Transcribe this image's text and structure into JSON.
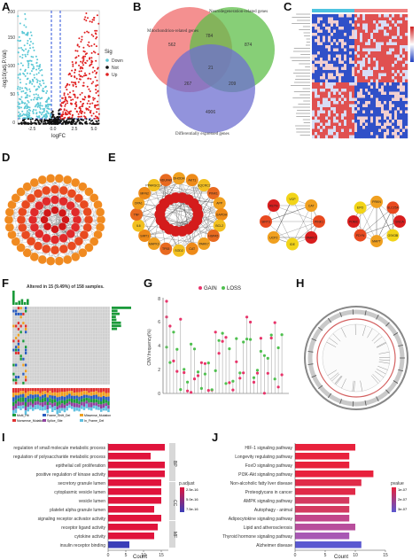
{
  "panel_labels": {
    "A": "A",
    "B": "B",
    "C": "C",
    "D": "D",
    "E": "E",
    "F": "F",
    "G": "G",
    "H": "H",
    "I": "I",
    "J": "J"
  },
  "panelA": {
    "ylabel": "-log10(adj.P.Val)",
    "xlabel": "logFC",
    "yticks": [
      "0",
      "50",
      "100",
      "150",
      "200"
    ],
    "xticks": [
      "-2.5",
      "0.0",
      "2.5",
      "5.0"
    ],
    "legend_title": "Sig",
    "legend": [
      {
        "label": "Down",
        "color": "#5bc8d6"
      },
      {
        "label": "Not",
        "color": "#111111"
      },
      {
        "label": "Up",
        "color": "#e02020"
      }
    ]
  },
  "panelB": {
    "set_labels": [
      "Mitochondrion-related genes",
      "Neurodegeneration-related genes",
      "Differentially expressed genes"
    ],
    "counts": {
      "m_only": "562",
      "m_n": "784",
      "n_only": "874",
      "center": "21",
      "m_d": "267",
      "n_d": "209",
      "d_only": "4906"
    },
    "colors": {
      "m": "#f06b6b",
      "n": "#5fbf4a",
      "d": "#6e6fd0"
    }
  },
  "panelE": {
    "cluster1_outer": [
      "DHODH",
      "AKT1",
      "UQCRC2",
      "PINK1",
      "APP",
      "GAPDH",
      "BCL2",
      "HSPA5",
      "PARK7",
      "CAT",
      "SOD2",
      "TP53",
      "MAPK3",
      "SIRT1",
      "IL6",
      "TNF",
      "OPA1",
      "MFN2",
      "PPARGC1A",
      "NDUFA9"
    ],
    "cluster2": [
      "VCP",
      "CAT",
      "PINK1",
      "PARK7",
      "IDE",
      "UCP2",
      "SIRT3",
      "RETN"
    ],
    "cluster3": [
      "PRKN",
      "SLC25A",
      "SNCA",
      "GSK3B",
      "MAPT",
      "PDYN",
      "POMC",
      "EPO"
    ]
  },
  "panelF": {
    "title": "Altered in 15 (9.49%) of 158 samples.",
    "legend": [
      "Multi_Hit",
      "Frame_Shift_Del",
      "Missense_Mutation",
      "Nonsense_Mutation",
      "Splice_Site",
      "In_Frame_Del"
    ]
  },
  "panelG": {
    "legend": [
      {
        "label": "GAIN",
        "color": "#e8346a"
      },
      {
        "label": "LOSS",
        "color": "#4fc04f"
      }
    ],
    "ylabel": "CNV.frequency(%)",
    "yticks": [
      "0",
      "2",
      "4",
      "6",
      "8"
    ]
  },
  "panelI": {
    "xlabel": "Count",
    "xticks": [
      "0",
      "5",
      "10",
      "15"
    ],
    "legend_title": "p.adjust",
    "legend_ticks": [
      "2.5e-16",
      "5.0e-16",
      "7.5e-16"
    ],
    "groups": [
      "BP",
      "CC",
      "MF"
    ],
    "chart_data": {
      "type": "bar",
      "categories": [
        "regulation of small molecule metabolic process",
        "regulation of polysaccharide metabolic process",
        "epithelial cell proliferation",
        "positive regulation of kinase activity",
        "secretory granule lumen",
        "cytoplasmic vesicle lumen",
        "vesicle lumen",
        "platelet alpha granule lumen",
        "signaling receptor activator activity",
        "receptor ligand activity",
        "cytokine activity",
        "insulin receptor binding"
      ],
      "values": [
        16,
        12,
        16,
        16,
        15,
        15,
        15,
        13,
        15,
        14,
        13,
        6
      ],
      "colors": [
        "#e0143c",
        "#e0143c",
        "#e0143c",
        "#e0143c",
        "#e0143c",
        "#e0143c",
        "#e0143c",
        "#e0143c",
        "#e0143c",
        "#e0143c",
        "#e0143c",
        "#3a3eb8"
      ],
      "xlim": [
        0,
        17
      ]
    }
  },
  "panelJ": {
    "xlabel": "Count",
    "xticks": [
      "0",
      "5",
      "10",
      "15"
    ],
    "legend_title": "pvalue",
    "legend_ticks": [
      "1e-07",
      "2e-07",
      "3e-07"
    ],
    "chart_data": {
      "type": "bar",
      "categories": [
        "HIF-1 signaling pathway",
        "Longevity regulating pathway",
        "FoxO signaling pathway",
        "PI3K-Akt signaling pathway",
        "Non-alcoholic fatty liver disease",
        "Proteoglycans in cancer",
        "AMPK signaling pathway",
        "Autophagy - animal",
        "Adipocytokine signaling pathway",
        "Lipid and atherosclerosis",
        "Thyroid hormone signaling pathway",
        "Alzheimer disease"
      ],
      "values": [
        10,
        9,
        9,
        13,
        11,
        10,
        9,
        9,
        9,
        10,
        9,
        11
      ],
      "colors": [
        "#e8213c",
        "#e8213c",
        "#e8213c",
        "#e8213c",
        "#e02a48",
        "#e02a48",
        "#d43a60",
        "#d43a60",
        "#c2468a",
        "#b84e9c",
        "#a858b4",
        "#5a58d0"
      ],
      "xlim": [
        0,
        15
      ]
    }
  }
}
